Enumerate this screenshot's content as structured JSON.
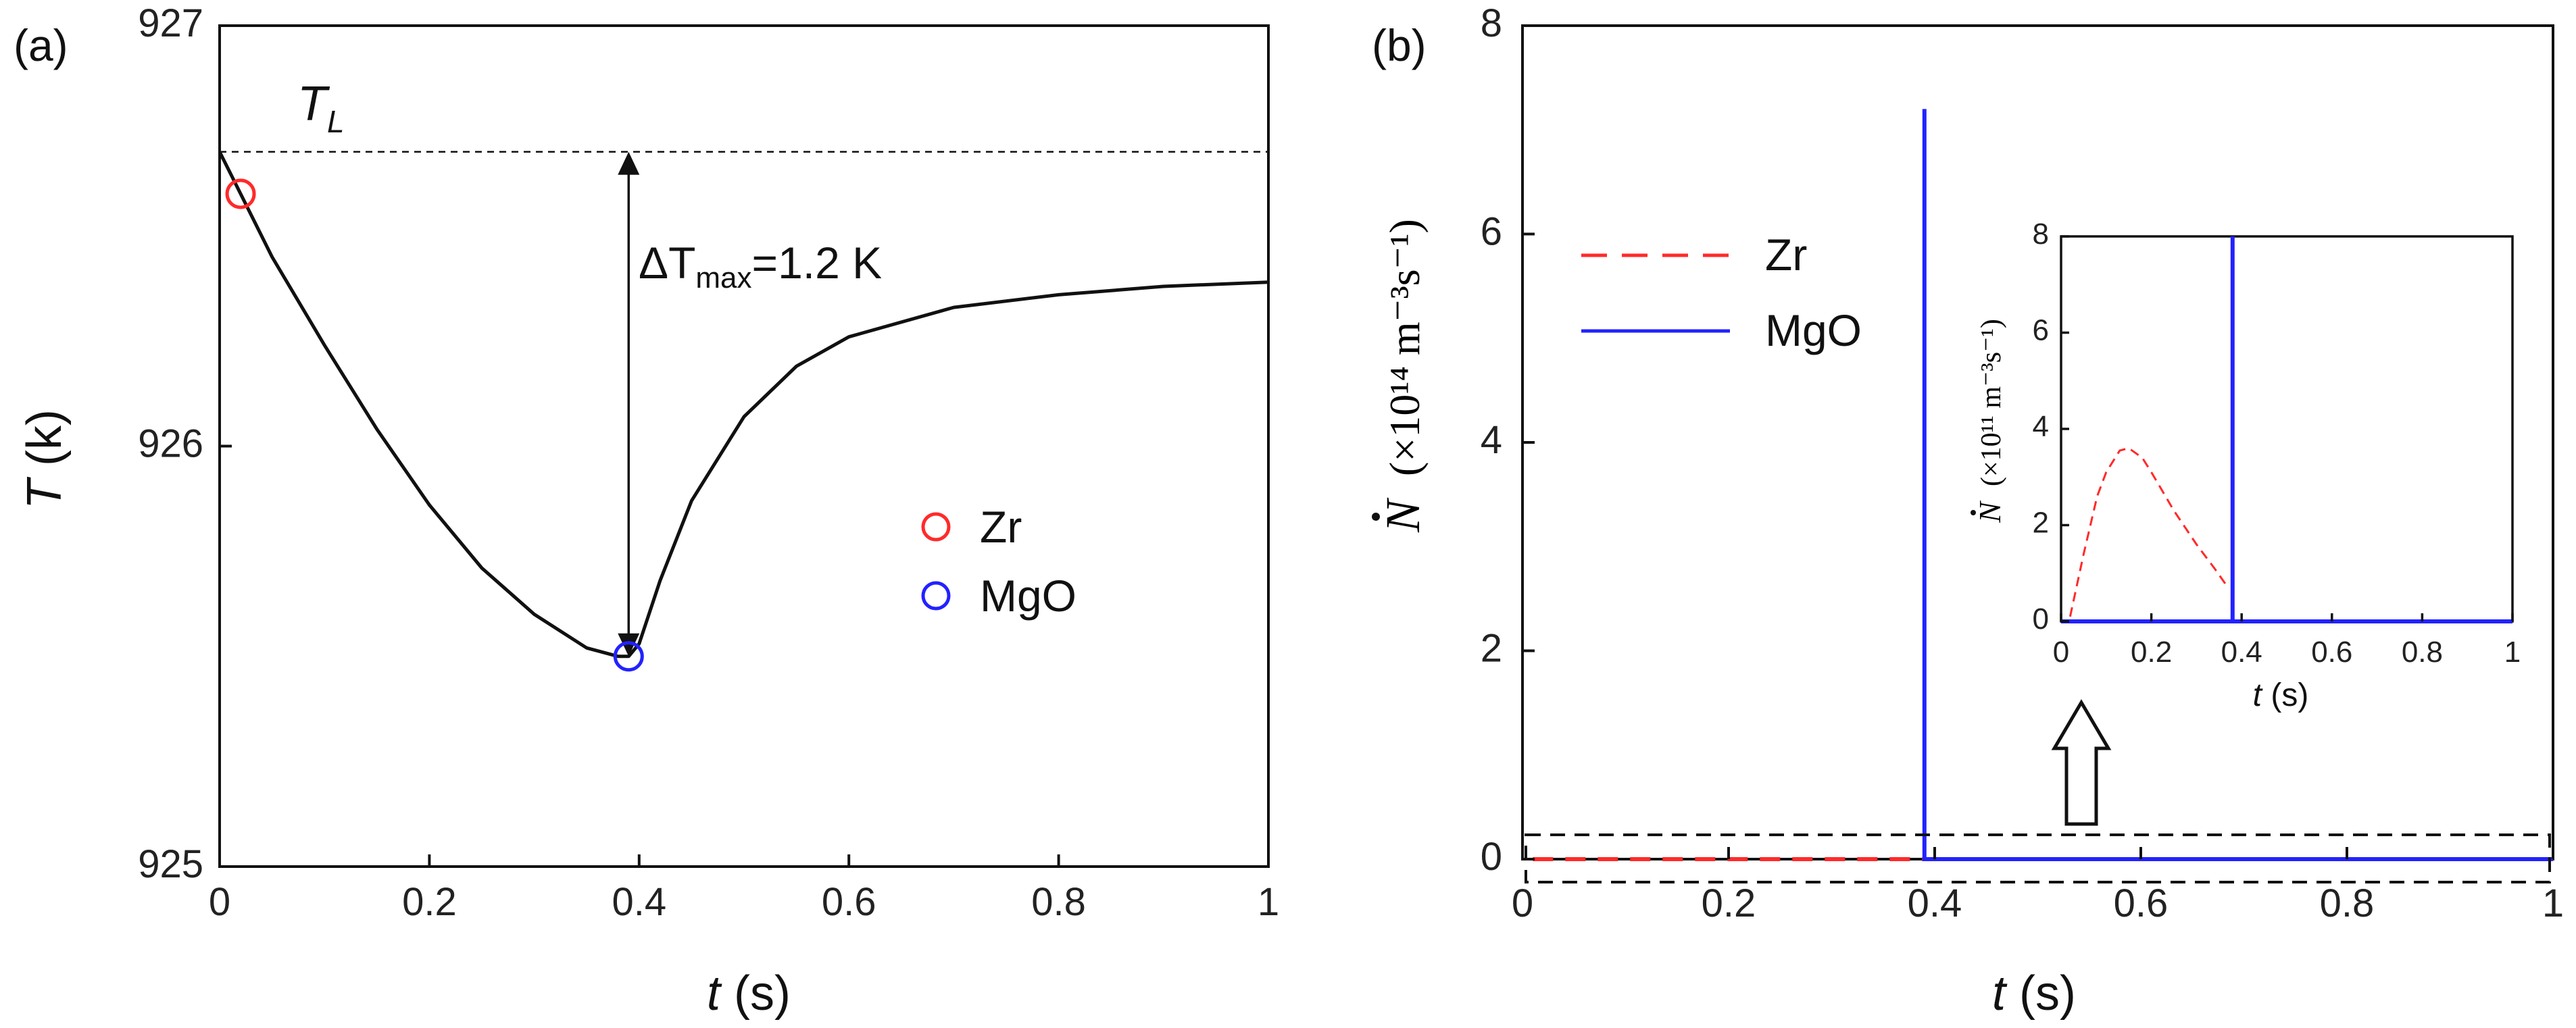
{
  "chart_data": [
    {
      "type": "line",
      "panel_label": "(a)",
      "xlabel_var": "t",
      "xlabel_unit": " (s)",
      "ylabel_var": "T",
      "ylabel_unit": " (k)",
      "xlim": [
        0,
        1
      ],
      "ylim": [
        925,
        927
      ],
      "x_ticks": [
        0,
        0.2,
        0.4,
        0.6,
        0.8,
        1
      ],
      "x_tick_labels": [
        "0",
        "0.2",
        "0.4",
        "0.6",
        "0.8",
        "1"
      ],
      "y_ticks": [
        925,
        926,
        927
      ],
      "y_tick_labels": [
        "925",
        "926",
        "927"
      ],
      "grid": false,
      "liquidus": {
        "label_var": "T",
        "label_sub": "L",
        "y": 926.7
      },
      "annotation": {
        "prefix": "ΔT",
        "sub": "max",
        "suffix": "=1.2 K",
        "x": 0.39,
        "y_top": 926.7,
        "y_bottom": 925.5
      },
      "series": [
        {
          "x": [
            0,
            0.03,
            0.05,
            0.1,
            0.15,
            0.2,
            0.25,
            0.3,
            0.35,
            0.38,
            0.39,
            0.4,
            0.42,
            0.45,
            0.5,
            0.55,
            0.6,
            0.7,
            0.8,
            0.9,
            1.0
          ],
          "y": [
            926.7,
            926.55,
            926.45,
            926.24,
            926.04,
            925.86,
            925.71,
            925.6,
            925.52,
            925.5,
            925.5,
            925.53,
            925.68,
            925.87,
            926.07,
            926.19,
            926.26,
            926.33,
            926.36,
            926.38,
            926.39
          ]
        }
      ],
      "markers": [
        {
          "name": "Zr",
          "x": 0.02,
          "y": 926.6,
          "color": "#ff2a2a"
        },
        {
          "name": "MgO",
          "x": 0.39,
          "y": 925.5,
          "color": "#2222ff"
        }
      ],
      "legend": {
        "placement": "right-center",
        "entries": [
          "Zr",
          "MgO"
        ]
      }
    },
    {
      "type": "line",
      "panel_label": "(b)",
      "xlabel_var": "t",
      "xlabel_unit": " (s)",
      "ylabel_unit": "(×10¹⁴ m⁻³s⁻¹)",
      "xlim": [
        0,
        1
      ],
      "ylim": [
        0,
        8
      ],
      "x_ticks": [
        0,
        0.2,
        0.4,
        0.6,
        0.8,
        1
      ],
      "x_tick_labels": [
        "0",
        "0.2",
        "0.4",
        "0.6",
        "0.8",
        "1"
      ],
      "y_ticks": [
        0,
        2,
        4,
        6,
        8
      ],
      "y_tick_labels": [
        "0",
        "2",
        "4",
        "6",
        "8"
      ],
      "grid": false,
      "series": [
        {
          "name": "Zr",
          "style": "dashed",
          "color": "#ff2a2a",
          "x": [
            0.01,
            0.39,
            0.4,
            1.0
          ],
          "y": [
            0.0,
            0.0,
            0.0,
            0.0
          ]
        },
        {
          "name": "MgO",
          "style": "solid",
          "color": "#2222ff",
          "x": [
            0.39,
            0.39,
            0.39,
            1.0
          ],
          "y": [
            0.0,
            7.2,
            0.0,
            0.0
          ]
        }
      ],
      "legend": {
        "placement": "top-left",
        "entries": [
          "Zr",
          "MgO"
        ]
      },
      "inset": {
        "xlabel_var": "t",
        "xlabel_unit": " (s)",
        "ylabel_unit": "(×10¹¹ m⁻³s⁻¹)",
        "xlim": [
          0,
          1
        ],
        "ylim": [
          0,
          8
        ],
        "x_ticks": [
          0,
          0.2,
          0.4,
          0.6,
          0.8,
          1
        ],
        "x_tick_labels": [
          "0",
          "0.2",
          "0.4",
          "0.6",
          "0.8",
          "1"
        ],
        "y_ticks": [
          0,
          2,
          4,
          6,
          8
        ],
        "y_tick_labels": [
          "0",
          "2",
          "4",
          "6",
          "8"
        ],
        "series": [
          {
            "name": "Zr",
            "style": "dashed",
            "color": "#ff2a2a",
            "x": [
              0.02,
              0.05,
              0.08,
              0.1,
              0.13,
              0.15,
              0.18,
              0.2,
              0.25,
              0.3,
              0.34,
              0.37
            ],
            "y": [
              0.1,
              1.4,
              2.6,
              3.1,
              3.55,
              3.6,
              3.4,
              3.1,
              2.3,
              1.6,
              1.1,
              0.7
            ]
          },
          {
            "name": "MgO",
            "style": "solid",
            "color": "#2222ff",
            "x": [
              0.0,
              0.38,
              0.38,
              0.38,
              1.0
            ],
            "y": [
              0.0,
              0.0,
              8.0,
              0.0,
              0.0
            ]
          }
        ]
      }
    }
  ]
}
